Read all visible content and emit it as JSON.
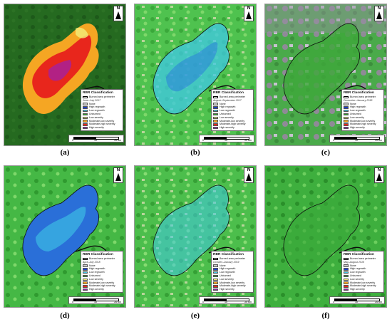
{
  "panels": [
    {
      "label": "(a)",
      "date": "June–July 2017"
    },
    {
      "label": "(b)",
      "date": "August–September 2017"
    },
    {
      "label": "(c)",
      "date": "December–January 2018"
    },
    {
      "label": "(d)",
      "date": "April–July 2018"
    },
    {
      "label": "(e)",
      "date": "October–January 2019"
    },
    {
      "label": "(f)",
      "date": "May–August 2019"
    }
  ],
  "north_label": "N",
  "legend": {
    "title": "RBR Classification",
    "perimeter": "Burned area perimeter",
    "classes": [
      {
        "name": "None",
        "color": "#c8c8c8"
      },
      {
        "name": "High regrowth",
        "color": "#1f3fc8"
      },
      {
        "name": "Low regrowth",
        "color": "#3fc8e6"
      },
      {
        "name": "Unburned",
        "color": "#2fa02f"
      },
      {
        "name": "Low severity",
        "color": "#f3f07a"
      },
      {
        "name": "Moderate-low severity",
        "color": "#f5a623"
      },
      {
        "name": "Moderate-high severity",
        "color": "#e8261c"
      },
      {
        "name": "High severity",
        "color": "#9b1fb0"
      }
    ]
  },
  "scalebar": {
    "t0": "0",
    "t1": "10",
    "t2": "20 km"
  },
  "colors": {
    "forest_dark": "#1f6b1f",
    "forest_light": "#4fc24f",
    "field": "#b9d59a",
    "perimeter": "#000000"
  }
}
